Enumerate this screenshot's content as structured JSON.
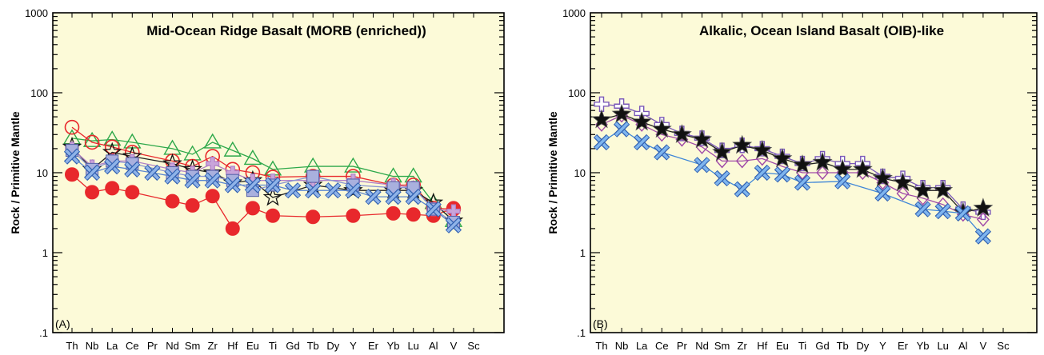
{
  "chart_data": [
    {
      "type": "line",
      "panel_label": "(A)",
      "title": "Mid-Ocean Ridge Basalt (MORB (enriched))",
      "ylabel": "Rock / Primitive Mantle",
      "yscale": "log",
      "ylim": [
        0.1,
        1000
      ],
      "yticks": [
        "1000",
        "100",
        "10",
        "1",
        ".1"
      ],
      "categories": [
        "Th",
        "Nb",
        "La",
        "Ce",
        "Pr",
        "Nd",
        "Sm",
        "Zr",
        "Hf",
        "Eu",
        "Ti",
        "Gd",
        "Tb",
        "Dy",
        "Y",
        "Er",
        "Yb",
        "Lu",
        "Al",
        "V",
        "Sc"
      ],
      "background": "#fcfad8",
      "series": [
        {
          "marker": "circle-filled",
          "color": "#e8282c",
          "values": [
            9.5,
            5.7,
            6.4,
            5.7,
            null,
            4.4,
            3.9,
            5.1,
            2.0,
            3.6,
            2.9,
            null,
            2.8,
            null,
            2.9,
            null,
            3.1,
            3.0,
            2.9,
            3.6,
            null
          ]
        },
        {
          "marker": "triangle-open",
          "color": "#2da84a",
          "values": [
            27,
            25,
            26,
            24,
            null,
            20,
            17,
            24,
            19,
            15,
            11,
            null,
            12,
            null,
            12,
            null,
            9,
            9,
            4.2,
            2.5,
            null
          ]
        },
        {
          "marker": "circle-open",
          "color": "#e8282c",
          "values": [
            37,
            24,
            21,
            18,
            null,
            14,
            12,
            16,
            11,
            10,
            8.8,
            null,
            9,
            null,
            9,
            null,
            7,
            7,
            3.6,
            3.5,
            null
          ]
        },
        {
          "marker": "star-open",
          "color": "#111111",
          "values": [
            21,
            11,
            18,
            16,
            null,
            13,
            11,
            10,
            7.5,
            8,
            4.9,
            null,
            7,
            null,
            6,
            null,
            6,
            6,
            4.2,
            2.5,
            null
          ]
        },
        {
          "marker": "plus-filled",
          "color": "#b080c8",
          "values": [
            20,
            12,
            14,
            14,
            null,
            11,
            10,
            13,
            10,
            8,
            8,
            null,
            8,
            null,
            8,
            null,
            7,
            6.5,
            3.5,
            3.3,
            null
          ]
        },
        {
          "marker": "square-filled",
          "color": "#8a96d2",
          "values": [
            19,
            11,
            14,
            13,
            null,
            10,
            9,
            9,
            8,
            6,
            7,
            null,
            9,
            null,
            7,
            null,
            6.5,
            6.5,
            3.5,
            2.4,
            null
          ]
        },
        {
          "marker": "x-filled",
          "color": "#5a86d0",
          "values": [
            16,
            10,
            12,
            11,
            10,
            9,
            8,
            8,
            7,
            7,
            7,
            6,
            6,
            6,
            6,
            5,
            5,
            5,
            3.5,
            2.2,
            null
          ]
        }
      ]
    },
    {
      "type": "line",
      "panel_label": "(B)",
      "title": "Alkalic, Ocean Island Basalt (OIB)-like",
      "ylabel": "Rock / Primitive Mantle",
      "yscale": "log",
      "ylim": [
        0.1,
        1000
      ],
      "yticks": [
        "1000",
        "100",
        "10",
        "1",
        ".1"
      ],
      "categories": [
        "Th",
        "Nb",
        "La",
        "Ce",
        "Pr",
        "Nd",
        "Sm",
        "Zr",
        "Hf",
        "Eu",
        "Ti",
        "Gd",
        "Tb",
        "Dy",
        "Y",
        "Er",
        "Yb",
        "Lu",
        "Al",
        "V",
        "Sc"
      ],
      "background": "#fcfad8",
      "series": [
        {
          "marker": "plus-open",
          "color": "#7a58b8",
          "values": [
            72,
            68,
            55,
            40,
            31,
            27,
            19,
            22,
            20,
            16,
            13,
            15,
            13,
            13,
            9,
            8.5,
            6.5,
            6.5,
            3.5,
            3.2,
            null
          ]
        },
        {
          "marker": "diamond-open",
          "color": "#a04aa8",
          "values": [
            40,
            52,
            40,
            30,
            26,
            21,
            14,
            14,
            15,
            12,
            10,
            10,
            10,
            10,
            7.5,
            5.5,
            4.8,
            4,
            3,
            2.6,
            null
          ]
        },
        {
          "marker": "star-filled",
          "color": "#111111",
          "values": [
            46,
            54,
            43,
            35,
            30,
            26,
            18,
            22,
            19,
            15,
            12.5,
            13.5,
            11,
            11,
            8.5,
            7.5,
            6,
            6,
            3.2,
            3.6,
            null
          ]
        },
        {
          "marker": "x-filled",
          "color": "#3f86d8",
          "values": [
            24,
            35,
            24,
            18,
            null,
            12.5,
            8.5,
            6.2,
            10,
            9.5,
            7.5,
            null,
            7.8,
            null,
            5.5,
            null,
            3.5,
            3.3,
            3.1,
            1.6,
            null
          ]
        }
      ]
    }
  ]
}
